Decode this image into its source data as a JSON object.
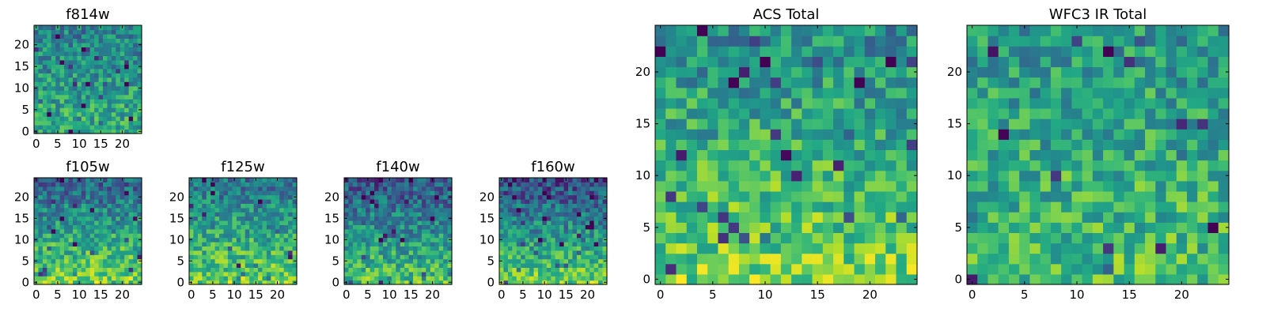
{
  "chart_data": [
    {
      "type": "heatmap",
      "title": "f814w",
      "colormap": "viridis",
      "rows": 25,
      "cols": 25,
      "xlim": [
        0,
        24
      ],
      "ylim": [
        0,
        24
      ],
      "xticks": [
        0,
        5,
        10,
        15,
        20
      ],
      "yticks": [
        0,
        5,
        10,
        15,
        20
      ],
      "base_level": 0.62,
      "top_level": 0.44,
      "grid": false
    },
    {
      "type": "heatmap",
      "title": "f105w",
      "colormap": "viridis",
      "rows": 25,
      "cols": 25,
      "xlim": [
        0,
        24
      ],
      "ylim": [
        0,
        24
      ],
      "xticks": [
        0,
        5,
        10,
        15,
        20
      ],
      "yticks": [
        0,
        5,
        10,
        15,
        20
      ],
      "base_level": 0.8,
      "top_level": 0.32,
      "grid": false
    },
    {
      "type": "heatmap",
      "title": "f125w",
      "colormap": "viridis",
      "rows": 25,
      "cols": 25,
      "xlim": [
        0,
        24
      ],
      "ylim": [
        0,
        24
      ],
      "xticks": [
        0,
        5,
        10,
        15,
        20
      ],
      "yticks": [
        0,
        5,
        10,
        15,
        20
      ],
      "base_level": 0.78,
      "top_level": 0.38,
      "grid": false
    },
    {
      "type": "heatmap",
      "title": "f140w",
      "colormap": "viridis",
      "rows": 25,
      "cols": 25,
      "xlim": [
        0,
        24
      ],
      "ylim": [
        0,
        24
      ],
      "xticks": [
        0,
        5,
        10,
        15,
        20
      ],
      "yticks": [
        0,
        5,
        10,
        15,
        20
      ],
      "base_level": 0.72,
      "top_level": 0.26,
      "grid": false
    },
    {
      "type": "heatmap",
      "title": "f160w",
      "colormap": "viridis",
      "rows": 25,
      "cols": 25,
      "xlim": [
        0,
        24
      ],
      "ylim": [
        0,
        24
      ],
      "xticks": [
        0,
        5,
        10,
        15,
        20
      ],
      "yticks": [
        0,
        5,
        10,
        15,
        20
      ],
      "base_level": 0.78,
      "top_level": 0.22,
      "grid": false
    },
    {
      "type": "heatmap",
      "title": "ACS Total",
      "colormap": "viridis",
      "rows": 25,
      "cols": 25,
      "xlim": [
        0,
        24
      ],
      "ylim": [
        0,
        24
      ],
      "xticks": [
        0,
        5,
        10,
        15,
        20
      ],
      "yticks": [
        0,
        5,
        10,
        15,
        20
      ],
      "base_level": 0.8,
      "top_level": 0.48,
      "grid": false
    },
    {
      "type": "heatmap",
      "title": "WFC3 IR Total",
      "colormap": "viridis",
      "rows": 25,
      "cols": 25,
      "xlim": [
        0,
        24
      ],
      "ylim": [
        0,
        24
      ],
      "xticks": [
        0,
        5,
        10,
        15,
        20
      ],
      "yticks": [
        0,
        5,
        10,
        15,
        20
      ],
      "base_level": 0.7,
      "top_level": 0.52,
      "grid": false
    }
  ]
}
